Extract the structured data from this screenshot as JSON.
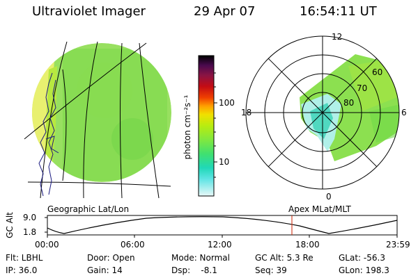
{
  "header": {
    "title": "Ultraviolet Imager",
    "date": "29 Apr 07",
    "time": "16:54:11 UT"
  },
  "colorbar": {
    "unit": "photon cm⁻²s⁻¹",
    "ticks": [
      "100",
      "10"
    ],
    "colors": [
      "#000000",
      "#3a0a3c",
      "#6a1a6a",
      "#8a1a40",
      "#b8101a",
      "#e00000",
      "#ff6a00",
      "#ffb000",
      "#e8e800",
      "#b8ec10",
      "#80e840",
      "#40e070",
      "#20d8b0",
      "#40e0e0",
      "#a0f0f0",
      "#e0f8f8"
    ]
  },
  "left_panel": {
    "label": "Geographic Lat/Lon"
  },
  "right_panel": {
    "label": "Apex MLat/MLT",
    "mlt_labels": {
      "top": "12",
      "left": "18",
      "right": "6",
      "bottom": "0"
    },
    "lat_labels": [
      "60",
      "70",
      "80"
    ]
  },
  "timeline": {
    "ylabel": "GC Alt",
    "y_ticks": [
      "9.0",
      "1.8"
    ],
    "x_ticks": [
      "00:00",
      "06:00",
      "12:00",
      "18:00",
      "23:59"
    ],
    "marker_color": "#cc2200"
  },
  "info": {
    "row1": [
      "Flt: LBHL",
      "Door: Open",
      "Mode: Normal",
      "GC Alt: 5.3 Re",
      "GLat: -56.3"
    ],
    "row2": [
      "IP: 36.0",
      "Gain: 14",
      "Dsp:    -8.1",
      "Seq: 39",
      "GLon: 198.3"
    ]
  }
}
